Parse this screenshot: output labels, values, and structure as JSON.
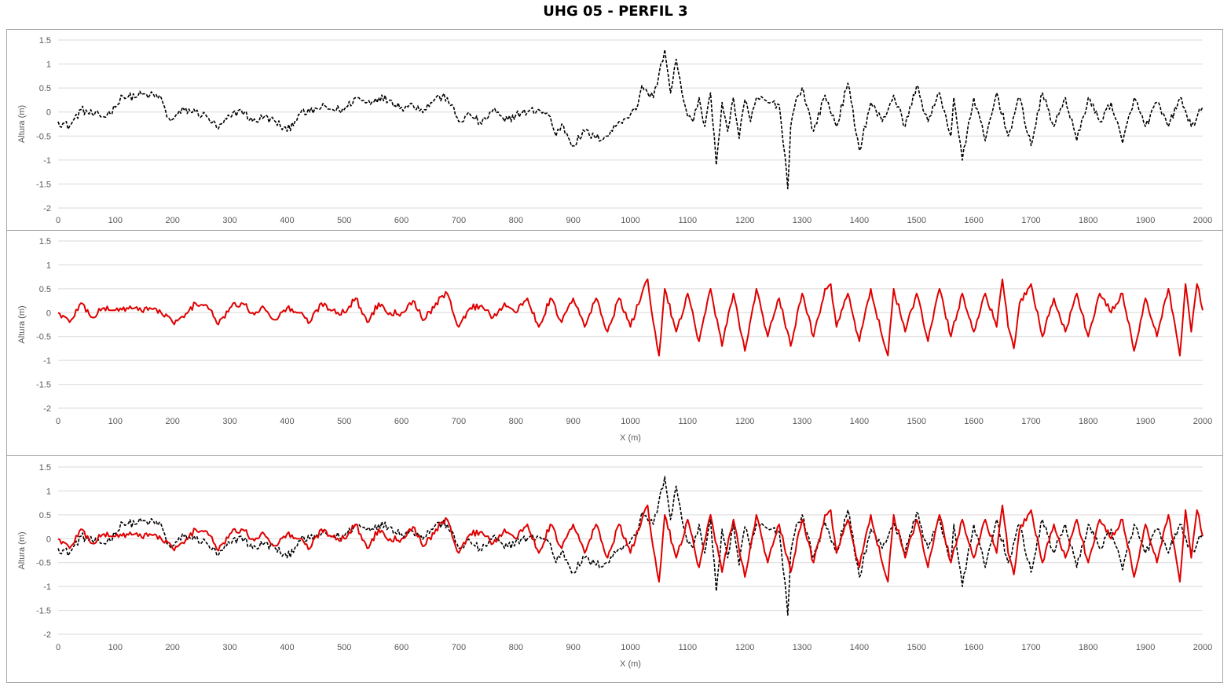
{
  "title": "UHG 05 - PERFIL 3",
  "colors": {
    "series_black": "#000000",
    "series_red": "#e00000",
    "grid": "#d9d9d9",
    "axis_text": "#595959"
  },
  "chart_data": [
    {
      "type": "line",
      "xlabel": "",
      "ylabel": "Altura (m)",
      "xlim": [
        0,
        2000
      ],
      "ylim": [
        -2,
        1.5
      ],
      "xticks": [
        "0",
        "100",
        "200",
        "300",
        "400",
        "500",
        "600",
        "700",
        "800",
        "900",
        "1000",
        "1100",
        "1200",
        "1300",
        "1400",
        "1500",
        "1600",
        "1700",
        "1800",
        "1900",
        "2000"
      ],
      "yticks": [
        "1.5",
        "1",
        "0.5",
        "0",
        "-0.5",
        "-1",
        "-1.5",
        "-2"
      ],
      "grid": true,
      "series": [
        {
          "style": "dashed",
          "color": "#000000",
          "x": [
            0,
            20,
            40,
            60,
            80,
            100,
            110,
            120,
            140,
            160,
            180,
            190,
            200,
            220,
            240,
            260,
            280,
            300,
            320,
            340,
            360,
            380,
            400,
            420,
            440,
            460,
            480,
            500,
            520,
            540,
            560,
            580,
            600,
            620,
            640,
            660,
            680,
            700,
            720,
            740,
            760,
            780,
            800,
            820,
            840,
            860,
            870,
            880,
            900,
            920,
            940,
            960,
            980,
            1000,
            1010,
            1020,
            1030,
            1040,
            1050,
            1060,
            1070,
            1080,
            1090,
            1100,
            1110,
            1120,
            1130,
            1140,
            1150,
            1160,
            1170,
            1180,
            1190,
            1200,
            1210,
            1220,
            1240,
            1260,
            1270,
            1275,
            1280,
            1290,
            1300,
            1320,
            1340,
            1360,
            1380,
            1400,
            1420,
            1440,
            1460,
            1480,
            1500,
            1520,
            1540,
            1560,
            1565,
            1580,
            1600,
            1620,
            1640,
            1660,
            1680,
            1700,
            1720,
            1740,
            1760,
            1780,
            1800,
            1820,
            1840,
            1860,
            1880,
            1900,
            1920,
            1940,
            1960,
            1980,
            2000
          ],
          "y": [
            -0.2,
            -0.3,
            0.05,
            -0.05,
            -0.1,
            0.1,
            0.35,
            0.3,
            0.35,
            0.35,
            0.3,
            -0.1,
            -0.15,
            0.05,
            0.0,
            -0.1,
            -0.35,
            -0.1,
            0.05,
            -0.2,
            -0.1,
            -0.2,
            -0.4,
            -0.05,
            0.0,
            0.1,
            0.05,
            0.05,
            0.3,
            0.2,
            0.3,
            0.25,
            0.1,
            0.15,
            0.05,
            0.3,
            0.3,
            -0.2,
            -0.05,
            -0.25,
            0.05,
            -0.2,
            -0.05,
            0.0,
            0.05,
            -0.1,
            -0.5,
            -0.25,
            -0.7,
            -0.4,
            -0.55,
            -0.5,
            -0.2,
            -0.05,
            0.05,
            0.55,
            0.4,
            0.3,
            0.8,
            1.3,
            0.4,
            1.1,
            0.4,
            -0.1,
            -0.2,
            0.3,
            -0.3,
            0.4,
            -1.1,
            0.2,
            -0.4,
            0.3,
            -0.55,
            0.25,
            -0.2,
            0.3,
            0.2,
            0.15,
            -0.9,
            -1.6,
            -0.3,
            0.3,
            0.5,
            -0.4,
            0.35,
            -0.3,
            0.6,
            -0.8,
            0.2,
            -0.2,
            0.35,
            -0.3,
            0.55,
            -0.2,
            0.4,
            -0.5,
            0.3,
            -1.0,
            0.3,
            -0.6,
            0.4,
            -0.5,
            0.3,
            -0.7,
            0.4,
            -0.3,
            0.3,
            -0.6,
            0.3,
            -0.2,
            0.2,
            -0.65,
            0.3,
            -0.3,
            0.2,
            -0.3,
            0.3,
            -0.3,
            0.1
          ]
        }
      ]
    },
    {
      "type": "line",
      "xlabel": "X (m)",
      "ylabel": "Altura (m)",
      "xlim": [
        0,
        2000
      ],
      "ylim": [
        -2,
        1.5
      ],
      "xticks": [
        "0",
        "100",
        "200",
        "300",
        "400",
        "500",
        "600",
        "700",
        "800",
        "900",
        "1000",
        "1100",
        "1200",
        "1300",
        "1400",
        "1500",
        "1600",
        "1700",
        "1800",
        "1900",
        "2000"
      ],
      "yticks": [
        "1.5",
        "1",
        "0.5",
        "0",
        "-0.5",
        "-1",
        "-1.5",
        "-2"
      ],
      "grid": true,
      "series": [
        {
          "style": "solid",
          "color": "#e00000",
          "x": [
            0,
            20,
            40,
            60,
            80,
            100,
            120,
            140,
            160,
            180,
            200,
            220,
            240,
            260,
            280,
            300,
            320,
            340,
            360,
            380,
            400,
            420,
            440,
            460,
            480,
            500,
            520,
            540,
            560,
            580,
            600,
            620,
            640,
            660,
            680,
            700,
            720,
            740,
            760,
            780,
            800,
            820,
            840,
            860,
            880,
            900,
            920,
            940,
            960,
            980,
            1000,
            1020,
            1030,
            1040,
            1050,
            1060,
            1080,
            1100,
            1120,
            1140,
            1160,
            1180,
            1200,
            1220,
            1240,
            1260,
            1280,
            1300,
            1320,
            1340,
            1350,
            1360,
            1380,
            1400,
            1420,
            1440,
            1450,
            1460,
            1480,
            1500,
            1520,
            1540,
            1560,
            1580,
            1600,
            1620,
            1640,
            1650,
            1660,
            1670,
            1680,
            1700,
            1720,
            1740,
            1760,
            1780,
            1800,
            1820,
            1840,
            1860,
            1880,
            1900,
            1920,
            1940,
            1960,
            1970,
            1980,
            1990,
            2000
          ],
          "y": [
            0.0,
            -0.2,
            0.2,
            -0.1,
            0.1,
            0.05,
            0.1,
            0.05,
            0.1,
            0.0,
            -0.2,
            -0.1,
            0.2,
            0.15,
            -0.25,
            0.1,
            0.2,
            0.0,
            0.1,
            -0.15,
            0.1,
            0.0,
            -0.2,
            0.2,
            0.05,
            0.0,
            0.3,
            -0.2,
            0.2,
            0.0,
            0.0,
            0.25,
            -0.15,
            0.2,
            0.4,
            -0.3,
            0.1,
            0.15,
            -0.1,
            0.2,
            0.0,
            0.3,
            -0.3,
            0.3,
            -0.2,
            0.3,
            -0.3,
            0.3,
            -0.4,
            0.3,
            -0.3,
            0.4,
            0.7,
            -0.2,
            -0.9,
            0.5,
            -0.4,
            0.4,
            -0.6,
            0.5,
            -0.7,
            0.4,
            -0.8,
            0.5,
            -0.5,
            0.3,
            -0.7,
            0.4,
            -0.5,
            0.5,
            0.6,
            -0.3,
            0.4,
            -0.6,
            0.5,
            -0.5,
            -0.9,
            0.5,
            -0.4,
            0.4,
            -0.6,
            0.5,
            -0.5,
            0.4,
            -0.4,
            0.4,
            -0.3,
            0.7,
            -0.3,
            -0.75,
            0.2,
            0.6,
            -0.5,
            0.3,
            -0.4,
            0.4,
            -0.5,
            0.4,
            0.0,
            0.4,
            -0.8,
            0.3,
            -0.5,
            0.5,
            -0.9,
            0.6,
            -0.4,
            0.6,
            0.05
          ]
        }
      ]
    },
    {
      "type": "line",
      "xlabel": "X (m)",
      "ylabel": "Altura (m)",
      "xlim": [
        0,
        2000
      ],
      "ylim": [
        -2,
        1.5
      ],
      "xticks": [
        "0",
        "100",
        "200",
        "300",
        "400",
        "500",
        "600",
        "700",
        "800",
        "900",
        "1000",
        "1100",
        "1200",
        "1300",
        "1400",
        "1500",
        "1600",
        "1700",
        "1800",
        "1900",
        "2000"
      ],
      "yticks": [
        "1.5",
        "1",
        "0.5",
        "0",
        "-0.5",
        "-1",
        "-1.5",
        "-2"
      ],
      "grid": true,
      "series": [
        {
          "style": "dashed",
          "color": "#000000",
          "same_as_chart": 0
        },
        {
          "style": "solid",
          "color": "#e00000",
          "same_as_chart": 1
        }
      ]
    }
  ]
}
